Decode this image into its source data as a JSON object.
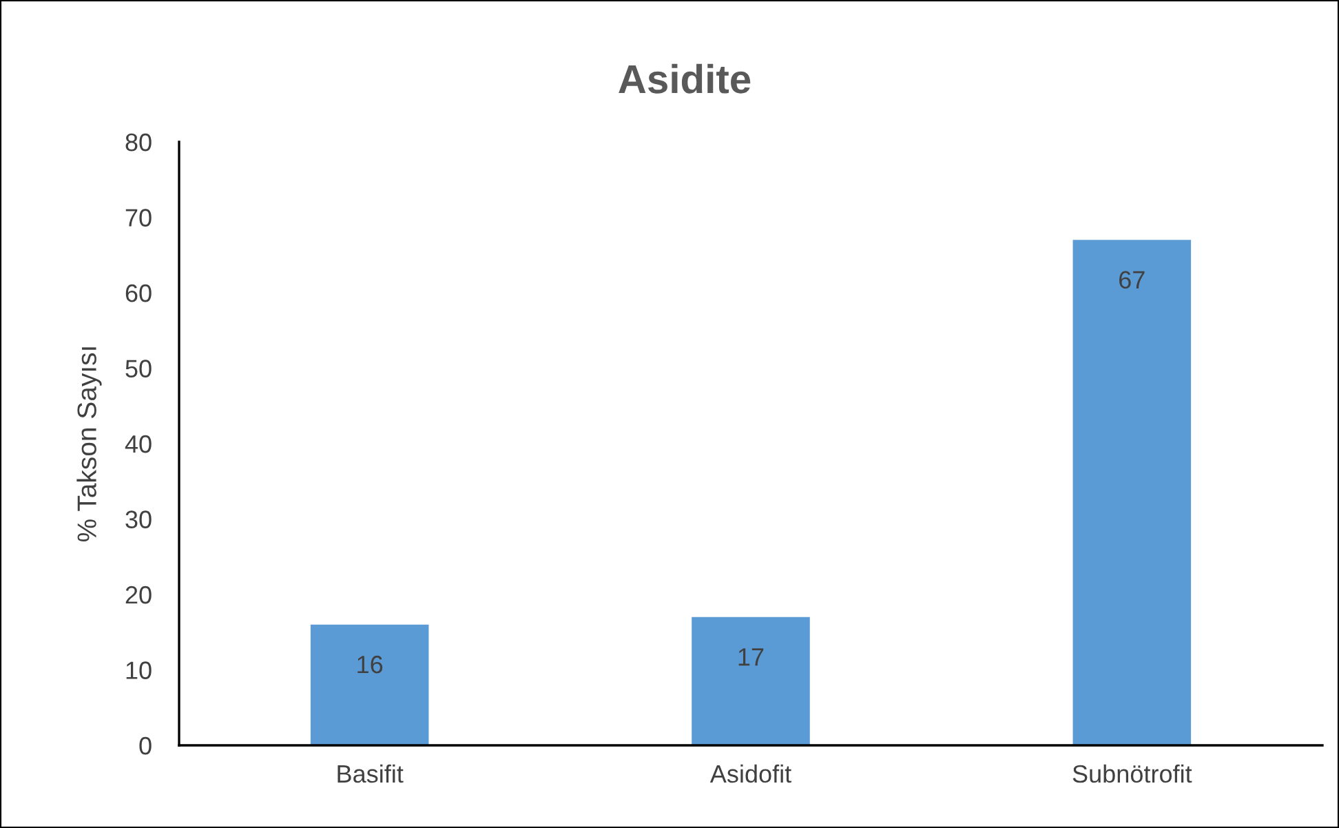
{
  "chart_data": {
    "type": "bar",
    "title": "Asidite",
    "ylabel": "% Takson Sayısı",
    "categories": [
      "Basifit",
      "Asidofit",
      "Subnötrofit"
    ],
    "values": [
      16,
      17,
      67
    ],
    "color": "#5b9bd5",
    "ylim": [
      0,
      80
    ],
    "yticks": [
      0,
      10,
      20,
      30,
      40,
      50,
      60,
      70,
      80
    ],
    "data_labels": true,
    "grid": false,
    "legend": false
  }
}
